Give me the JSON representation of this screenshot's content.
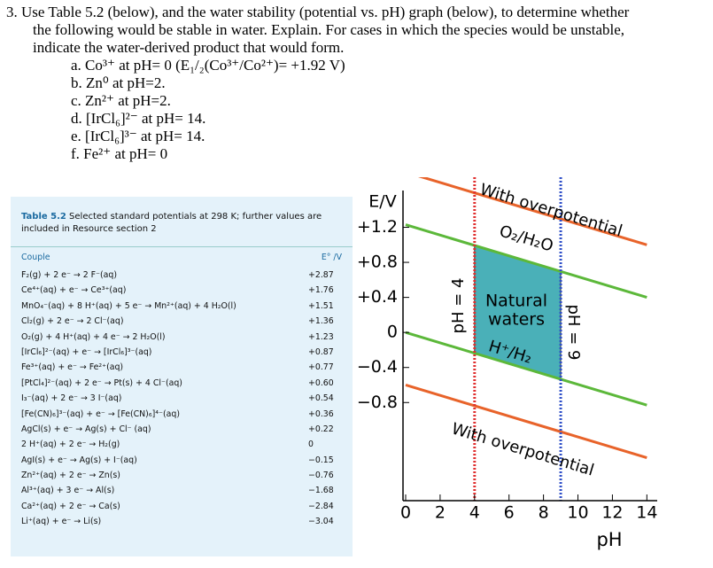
{
  "question": {
    "intro": [
      "3. Use Table 5.2 (below), and the water stability (potential vs. pH) graph (below), to determine whether",
      "the following would be stable in water. Explain. For cases in which the species would be unstable,",
      "indicate the water-derived product that would form."
    ],
    "items": [
      "a. Co³⁺ at pH= 0 (E₁/₂(Co³⁺/Co²⁺)= +1.92 V)",
      "b. Zn⁰ at pH=2.",
      "c. Zn²⁺ at pH=2.",
      "d. [IrCl₆]²⁻ at pH= 14.",
      "e. [IrCl₆]³⁻ at pH= 14.",
      "f. Fe²⁺ at pH= 0"
    ]
  },
  "table": {
    "caption_label": "Table 5.2",
    "caption": "Selected standard potentials at 298 K; further values are included in Resource section 2",
    "header": [
      "Couple",
      "E° /V"
    ],
    "rows": [
      [
        "F₂(g) + 2 e⁻ → 2 F⁻(aq)",
        "+2.87"
      ],
      [
        "Ce⁴⁺(aq) + e⁻ → Ce³⁺(aq)",
        "+1.76"
      ],
      [
        "MnO₄⁻(aq) + 8 H⁺(aq) + 5 e⁻ → Mn²⁺(aq) + 4 H₂O(l)",
        "+1.51"
      ],
      [
        "Cl₂(g) + 2 e⁻ → 2 Cl⁻(aq)",
        "+1.36"
      ],
      [
        "O₂(g) + 4 H⁺(aq) + 4 e⁻ → 2 H₂O(l)",
        "+1.23"
      ],
      [
        "[IrCl₆]²⁻(aq) + e⁻ → [IrCl₆]³⁻(aq)",
        "+0.87"
      ],
      [
        "Fe³⁺(aq) + e⁻ → Fe²⁺(aq)",
        "+0.77"
      ],
      [
        "[PtCl₄]²⁻(aq) + 2 e⁻ → Pt(s) + 4 Cl⁻(aq)",
        "+0.60"
      ],
      [
        "I₃⁻(aq) + 2 e⁻ → 3 I⁻(aq)",
        "+0.54"
      ],
      [
        "[Fe(CN)₆]³⁻(aq) + e⁻ → [Fe(CN)₆]⁴⁻(aq)",
        "+0.36"
      ],
      [
        "AgCl(s) + e⁻ → Ag(s) + Cl⁻ (aq)",
        "+0.22"
      ],
      [
        "2 H⁺(aq) + 2 e⁻ → H₂(g)",
        "0"
      ],
      [
        "AgI(s) + e⁻ → Ag(s) + I⁻(aq)",
        "−0.15"
      ],
      [
        "Zn²⁺(aq) + 2 e⁻ → Zn(s)",
        "−0.76"
      ],
      [
        "Al³⁺(aq) + 3 e⁻ → Al(s)",
        "−1.68"
      ],
      [
        "Ca²⁺(aq) + 2 e⁻ → Ca(s)",
        "−2.84"
      ],
      [
        "Li⁺(aq) + e⁻ → Li(s)",
        "−3.04"
      ]
    ]
  },
  "chart_data": {
    "type": "line",
    "y_label": "E/V",
    "x_label": "pH",
    "x": [
      0,
      14
    ],
    "series": [
      {
        "name": "With overpotential",
        "color": "#e8632a",
        "values": [
          1.83,
          1.0
        ]
      },
      {
        "name": "O₂/H₂O",
        "color": "#5cb83a",
        "values": [
          1.23,
          0.4
        ]
      },
      {
        "name": "H⁺/H₂",
        "color": "#5cb83a",
        "values": [
          0,
          -0.83
        ]
      },
      {
        "name": "With overpotential",
        "color": "#e8632a",
        "values": [
          -0.6,
          -1.43
        ]
      }
    ],
    "region": {
      "label": [
        "Natural",
        "waters"
      ],
      "color": "#4ab0b8",
      "x": [
        4,
        9
      ]
    },
    "vlines": [
      {
        "x": 4,
        "label": "pH = 4",
        "color": "#e03030"
      },
      {
        "x": 9,
        "label": "pH = 9",
        "color": "#3050c8"
      }
    ],
    "xlim": [
      0,
      14.6
    ],
    "ylim": [
      -1.92,
      1.62
    ],
    "xticks": [
      0,
      2,
      4,
      6,
      8,
      10,
      12,
      14
    ],
    "yticks": [
      {
        "value": 1.2,
        "label": "+1.2"
      },
      {
        "value": 0.8,
        "label": "+0.8"
      },
      {
        "value": 0.4,
        "label": "+0.4"
      },
      0,
      {
        "value": -0.4,
        "label": "−0.4"
      },
      {
        "value": -0.8,
        "label": "−0.8"
      }
    ]
  }
}
